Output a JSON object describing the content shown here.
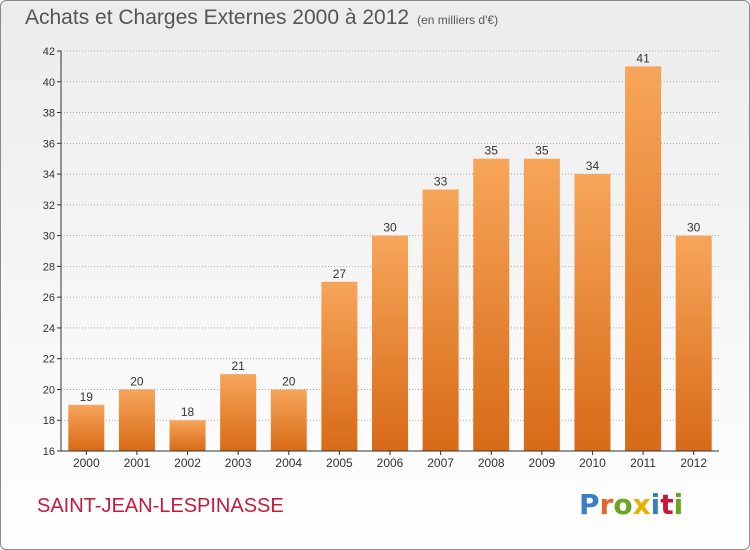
{
  "header": {
    "title": "Achats et Charges Externes 2000 à 2012",
    "subtitle": "(en milliers d'€)"
  },
  "commune": "SAINT-JEAN-LESPINASSE",
  "logo": {
    "text": "Proxiti",
    "letter_colors": [
      "#3a7fc4",
      "#e2662b",
      "#6aa51f",
      "#e0b400",
      "#3a7fc4",
      "#c8193c",
      "#6aa51f"
    ]
  },
  "colors": {
    "bar_top": "#f7a55a",
    "bar_bottom": "#d86a17",
    "grid": "#9a9a9a",
    "axis": "#333333"
  },
  "chart_data": {
    "type": "bar",
    "title": "Achats et Charges Externes 2000 à 2012",
    "subtitle": "(en milliers d'€)",
    "categories": [
      "2000",
      "2001",
      "2002",
      "2003",
      "2004",
      "2005",
      "2006",
      "2007",
      "2008",
      "2009",
      "2010",
      "2011",
      "2012"
    ],
    "values": [
      19,
      20,
      18,
      21,
      20,
      27,
      30,
      33,
      35,
      35,
      34,
      41,
      30
    ],
    "ylim": [
      16,
      42
    ],
    "yticks": [
      16,
      18,
      20,
      22,
      24,
      26,
      28,
      30,
      32,
      34,
      36,
      38,
      40,
      42
    ],
    "grid": true,
    "data_labels": true
  }
}
